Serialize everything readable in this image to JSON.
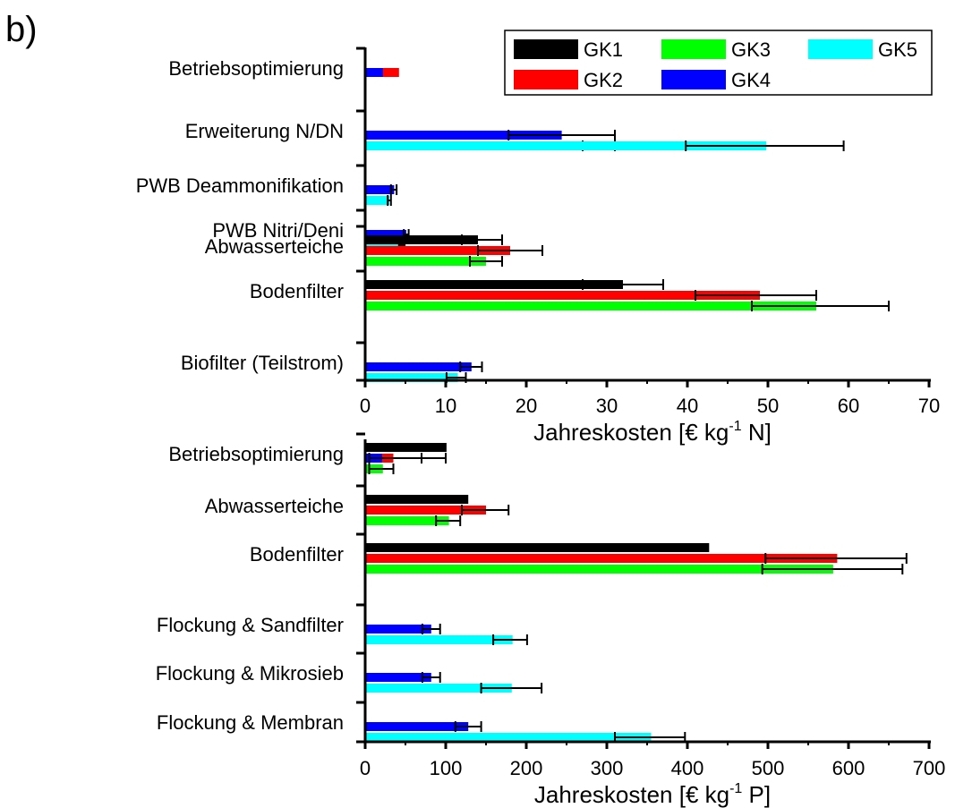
{
  "panel_label": "b)",
  "legend": [
    {
      "name": "GK1",
      "color": "#000000"
    },
    {
      "name": "GK2",
      "color": "#ff0000"
    },
    {
      "name": "GK3",
      "color": "#00ff00"
    },
    {
      "name": "GK4",
      "color": "#0000ff"
    },
    {
      "name": "GK5",
      "color": "#00ffff"
    }
  ],
  "chart_data": [
    {
      "type": "bar",
      "orientation": "horizontal",
      "xlabel_main": "Jahreskosten [€ kg",
      "xlabel_sup": "-1",
      "xlabel_end": " N]",
      "xlim": [
        0,
        70
      ],
      "xticks": [
        0,
        10,
        20,
        30,
        40,
        50,
        60,
        70
      ],
      "categories": [
        "Betriebsoptimierung",
        "Erweiterung N/DN",
        "PWB Deammonifikation",
        "PWB Nitri/Deni",
        "Abwasserteiche",
        "Bodenfilter",
        "Biofilter (Teilstrom)"
      ],
      "bars": [
        {
          "category": "Betriebsoptimierung",
          "series": "GK2",
          "value": 4.2
        },
        {
          "category": "Betriebsoptimierung",
          "series": "GK4",
          "value": 2.2
        },
        {
          "category": "Erweiterung N/DN",
          "series": "GK3",
          "value": 29,
          "err_low": 27,
          "err_high": 31
        },
        {
          "category": "Erweiterung N/DN",
          "series": "GK4",
          "value": 24.4,
          "err_low": 17.8,
          "err_high": 31
        },
        {
          "category": "Erweiterung N/DN",
          "series": "GK5",
          "value": 49.8,
          "err_low": 39.8,
          "err_high": 59.4
        },
        {
          "category": "PWB Deammonifikation",
          "series": "GK4",
          "value": 3.6,
          "err_low": 3.2,
          "err_high": 3.9
        },
        {
          "category": "PWB Deammonifikation",
          "series": "GK5",
          "value": 3,
          "err_low": 2.8,
          "err_high": 3.2
        },
        {
          "category": "PWB Nitri/Deni",
          "series": "GK4",
          "value": 5.1,
          "err_low": 4.8,
          "err_high": 5.4
        },
        {
          "category": "PWB Nitri/Deni",
          "series": "GK5",
          "value": 4.5,
          "err_low": 4.2,
          "err_high": 4.9
        },
        {
          "category": "Abwasserteiche",
          "series": "GK1",
          "value": 14,
          "err_low": 12,
          "err_high": 17
        },
        {
          "category": "Abwasserteiche",
          "series": "GK2",
          "value": 18,
          "err_low": 14,
          "err_high": 22
        },
        {
          "category": "Abwasserteiche",
          "series": "GK3",
          "value": 15,
          "err_low": 13,
          "err_high": 17
        },
        {
          "category": "Bodenfilter",
          "series": "GK1",
          "value": 32,
          "err_low": 27,
          "err_high": 37
        },
        {
          "category": "Bodenfilter",
          "series": "GK2",
          "value": 49,
          "err_low": 41,
          "err_high": 56
        },
        {
          "category": "Bodenfilter",
          "series": "GK3",
          "value": 56,
          "err_low": 48,
          "err_high": 65
        },
        {
          "category": "Biofilter (Teilstrom)",
          "series": "GK4",
          "value": 13.2,
          "err_low": 11.8,
          "err_high": 14.5
        },
        {
          "category": "Biofilter (Teilstrom)",
          "series": "GK5",
          "value": 11.5,
          "err_low": 10.1,
          "err_high": 12.5
        }
      ]
    },
    {
      "type": "bar",
      "orientation": "horizontal",
      "xlabel_main": "Jahreskosten [€ kg",
      "xlabel_sup": "-1",
      "xlabel_end": " P]",
      "xlim": [
        0,
        700
      ],
      "xticks": [
        0,
        100,
        200,
        300,
        400,
        500,
        600,
        700
      ],
      "categories": [
        "Betriebsoptimierung",
        "Abwasserteiche",
        "Bodenfilter",
        "Flockung & Sandfilter",
        "Flockung & Mikrosieb",
        "Flockung & Membran"
      ],
      "bars": [
        {
          "category": "Betriebsoptimierung",
          "series": "GK1",
          "value": 101
        },
        {
          "category": "Betriebsoptimierung",
          "series": "GK2",
          "value": 35,
          "err_low": 5,
          "err_high": 70
        },
        {
          "category": "Betriebsoptimierung",
          "series": "GK3",
          "value": 22,
          "err_low": 5,
          "err_high": 35
        },
        {
          "category": "Betriebsoptimierung",
          "series": "GK4",
          "value": 21,
          "err_low": 5,
          "err_high": 100
        },
        {
          "category": "Abwasserteiche",
          "series": "GK1",
          "value": 128
        },
        {
          "category": "Abwasserteiche",
          "series": "GK2",
          "value": 150,
          "err_low": 120,
          "err_high": 178
        },
        {
          "category": "Abwasserteiche",
          "series": "GK3",
          "value": 104,
          "err_low": 88,
          "err_high": 118
        },
        {
          "category": "Bodenfilter",
          "series": "GK1",
          "value": 427
        },
        {
          "category": "Bodenfilter",
          "series": "GK2",
          "value": 586,
          "err_low": 497,
          "err_high": 672
        },
        {
          "category": "Bodenfilter",
          "series": "GK3",
          "value": 581,
          "err_low": 493,
          "err_high": 667
        },
        {
          "category": "Flockung & Sandfilter",
          "series": "GK4",
          "value": 82,
          "err_low": 71,
          "err_high": 93
        },
        {
          "category": "Flockung & Sandfilter",
          "series": "GK5",
          "value": 183,
          "err_low": 159,
          "err_high": 201
        },
        {
          "category": "Flockung & Mikrosieb",
          "series": "GK4",
          "value": 82,
          "err_low": 71,
          "err_high": 93
        },
        {
          "category": "Flockung & Mikrosieb",
          "series": "GK5",
          "value": 182,
          "err_low": 144,
          "err_high": 219
        },
        {
          "category": "Flockung & Membran",
          "series": "GK4",
          "value": 128,
          "err_low": 112,
          "err_high": 144
        },
        {
          "category": "Flockung & Membran",
          "series": "GK5",
          "value": 355,
          "err_low": 310,
          "err_high": 397
        }
      ]
    }
  ]
}
